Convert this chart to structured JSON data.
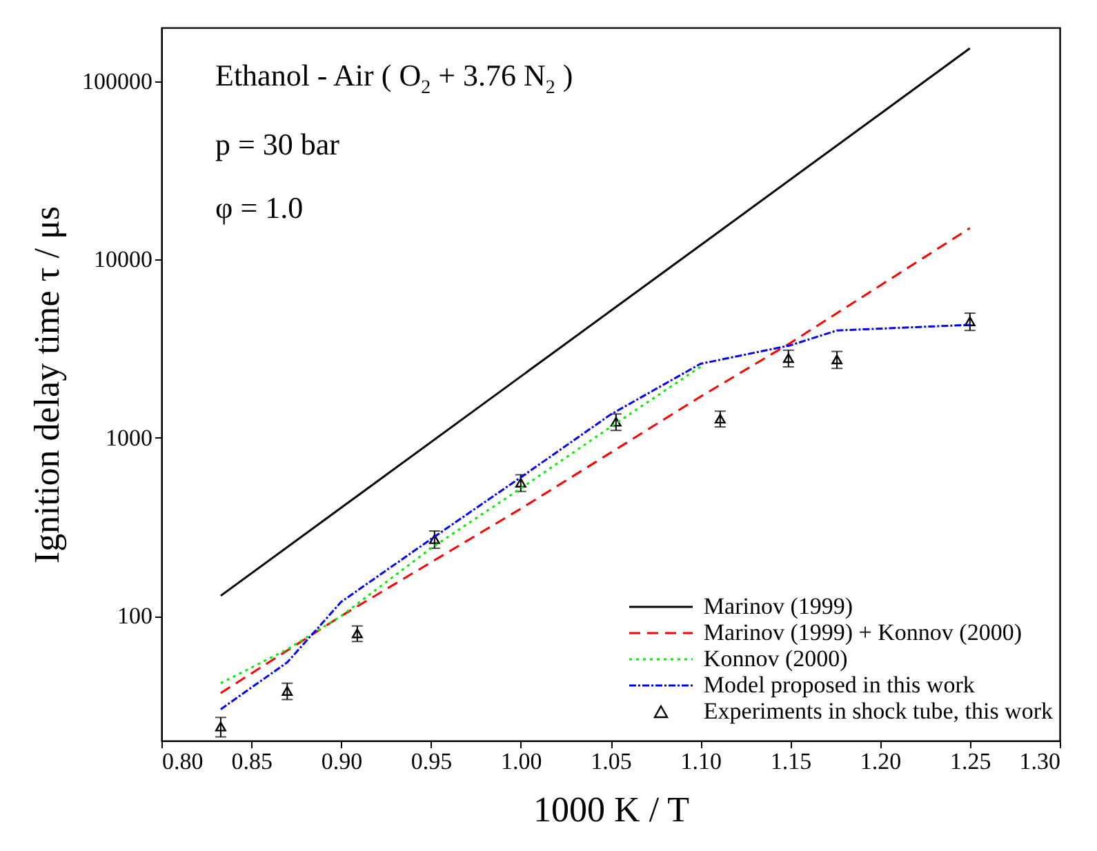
{
  "chart_data": {
    "type": "line",
    "xlabel": "1000 K / T",
    "ylabel": "Ignition delay time  τ / μs",
    "log": "y",
    "grid": false,
    "legend": "bottom right",
    "xlim": [
      0.8,
      1.3
    ],
    "xticks": [
      {
        "value": 0.8,
        "label": "0.80"
      },
      0.85,
      {
        "value": 0.9,
        "label": "0.90"
      },
      0.95,
      {
        "value": 1.0,
        "label": "1.00"
      },
      1.05,
      {
        "value": 1.1,
        "label": "1.10"
      },
      1.15,
      {
        "value": 1.2,
        "label": "1.20"
      },
      1.25,
      {
        "value": 1.3,
        "label": "1.30"
      }
    ],
    "ylim": [
      20,
      200000
    ],
    "yticks": [
      100,
      1000,
      10000,
      100000
    ],
    "annotations": [
      "Ethanol - Air ( O$_{2}$ + 3.76 N$_{2}$ )",
      "p = 30 bar",
      "φ = 1.0"
    ],
    "series": [
      {
        "name": "Marinov (1999)",
        "line_style": "solid",
        "color": "#000000",
        "x": [
          0.833,
          1.25
        ],
        "values": [
          130,
          153000
        ]
      },
      {
        "name": "Marinov (1999) + Konnov (2000)",
        "line_style": "dashed",
        "color": "#ff0000",
        "x": [
          0.833,
          0.9,
          1.0,
          1.1,
          1.15,
          1.25
        ],
        "values": [
          37,
          100,
          400,
          1700,
          3400,
          15000
        ]
      },
      {
        "name": "Konnov (2000)",
        "line_style": "dotted",
        "color": "#00ee00",
        "x": [
          0.833,
          0.87,
          0.9,
          0.95,
          1.0,
          1.05,
          1.1
        ],
        "values": [
          42,
          65,
          100,
          240,
          520,
          1150,
          2500
        ]
      },
      {
        "name": "Model proposed in this work",
        "line_style": "dashdot",
        "color": "#0000ff",
        "x": [
          0.833,
          0.87,
          0.9,
          0.95,
          1.0,
          1.05,
          1.1,
          1.15,
          1.176,
          1.25
        ],
        "values": [
          30,
          55,
          120,
          270,
          600,
          1350,
          2600,
          3300,
          4000,
          4300
        ]
      },
      {
        "name": "Experiments in shock tube, this work",
        "type": "scatter",
        "marker": "triangle",
        "color": "#000000",
        "x": [
          0.833,
          0.87,
          0.909,
          0.952,
          1.0,
          1.053,
          1.111,
          1.149,
          1.176,
          1.25
        ],
        "values": [
          24,
          38,
          80,
          270,
          560,
          1230,
          1280,
          2800,
          2750,
          4500
        ],
        "errors": [
          3,
          4,
          8,
          30,
          60,
          130,
          130,
          300,
          300,
          500
        ]
      }
    ]
  }
}
